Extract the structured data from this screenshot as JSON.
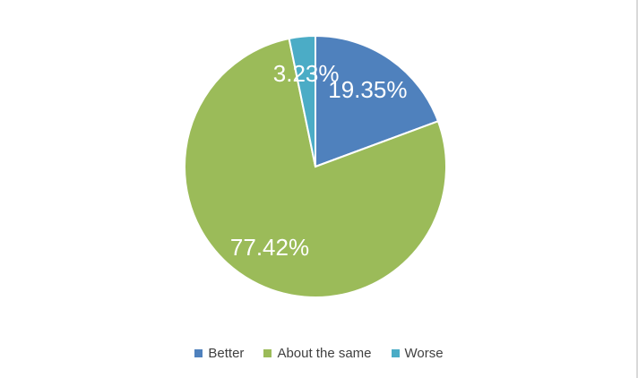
{
  "chart_data": {
    "type": "pie",
    "title": "",
    "start_angle_deg": 0,
    "series": [
      {
        "name": "Better",
        "value": 19.35,
        "label": "19.35%",
        "color": "#4f81bd"
      },
      {
        "name": "About the same",
        "value": 77.42,
        "label": "77.42%",
        "color": "#9bbb59"
      },
      {
        "name": "Worse",
        "value": 3.23,
        "label": "3.23%",
        "color": "#4bacc6"
      }
    ],
    "legend": {
      "position": "bottom"
    }
  }
}
